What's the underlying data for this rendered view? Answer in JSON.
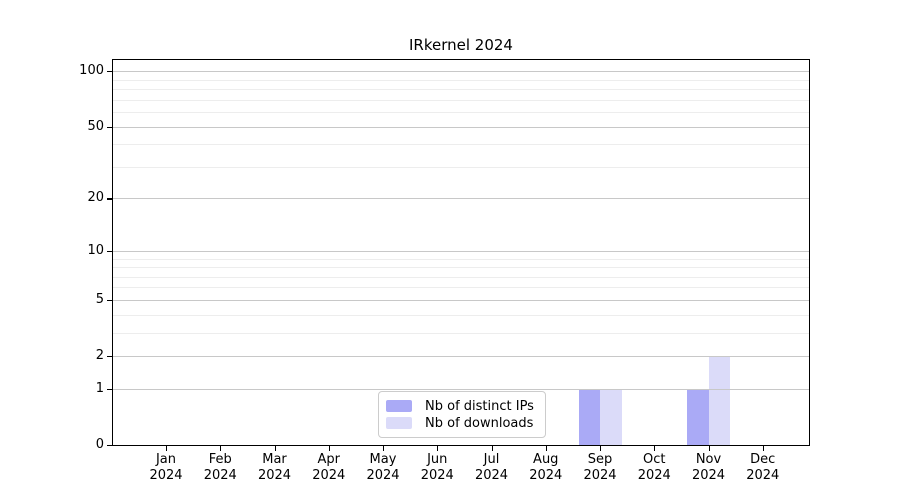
{
  "chart_data": {
    "type": "bar",
    "title": "IRkernel 2024",
    "categories": [
      {
        "month": "Jan",
        "year": "2024"
      },
      {
        "month": "Feb",
        "year": "2024"
      },
      {
        "month": "Mar",
        "year": "2024"
      },
      {
        "month": "Apr",
        "year": "2024"
      },
      {
        "month": "May",
        "year": "2024"
      },
      {
        "month": "Jun",
        "year": "2024"
      },
      {
        "month": "Jul",
        "year": "2024"
      },
      {
        "month": "Aug",
        "year": "2024"
      },
      {
        "month": "Sep",
        "year": "2024"
      },
      {
        "month": "Oct",
        "year": "2024"
      },
      {
        "month": "Nov",
        "year": "2024"
      },
      {
        "month": "Dec",
        "year": "2024"
      }
    ],
    "series": [
      {
        "name": "Nb of distinct IPs",
        "color": "#aaaaf6",
        "values": [
          0,
          0,
          0,
          0,
          0,
          0,
          0,
          0,
          1,
          0,
          1,
          0
        ]
      },
      {
        "name": "Nb of downloads",
        "color": "#dbdbf9",
        "values": [
          0,
          0,
          0,
          0,
          0,
          0,
          0,
          0,
          1,
          0,
          2,
          0
        ]
      }
    ],
    "y_axis": {
      "scale": "log1p",
      "min": 0,
      "max": 115,
      "major_ticks": [
        0,
        1,
        2,
        5,
        10,
        20,
        50,
        100
      ],
      "major_tick_labels": [
        "0",
        "1",
        "2",
        "5",
        "10",
        "20",
        "50",
        "100"
      ],
      "minor_gridlines": [
        3,
        4,
        6,
        7,
        8,
        9,
        30,
        40,
        60,
        70,
        80,
        90
      ]
    },
    "x_axis": {
      "tick_label_rows": 2
    },
    "legend": {
      "position": "lower center"
    },
    "grid": true,
    "colors": {
      "background": "#ffffff",
      "spine": "#000000",
      "major_grid": "#c8c8c8",
      "minor_grid": "#ededed",
      "text": "#000000",
      "legend_border": "#cccccc"
    }
  }
}
